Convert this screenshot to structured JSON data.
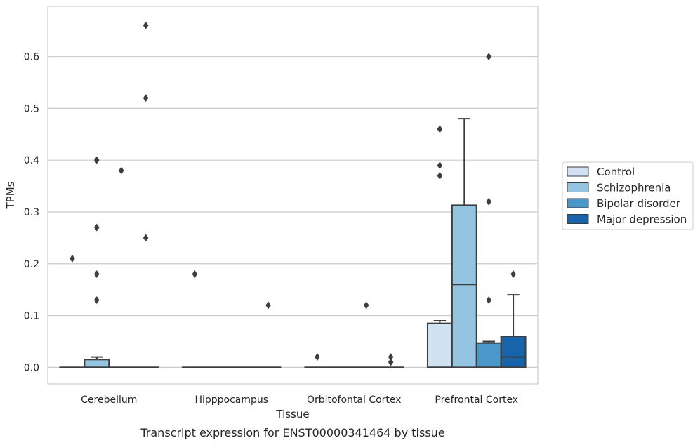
{
  "chart_data": {
    "type": "box",
    "xlabel": "Tissue",
    "ylabel": "TPMs",
    "caption": "Transcript expression for ENST00000341464 by tissue",
    "ylim": [
      -0.032,
      0.697
    ],
    "yticks": [
      0.0,
      0.1,
      0.2,
      0.3,
      0.4,
      0.5,
      0.6
    ],
    "ytick_labels": [
      "0.0",
      "0.1",
      "0.2",
      "0.3",
      "0.4",
      "0.5",
      "0.6"
    ],
    "grid": "horizontal",
    "legend_position": "right",
    "categories": [
      "Cerebellum",
      "Hipppocampus",
      "Orbitofontal Cortex",
      "Prefrontal Cortex"
    ],
    "series": [
      {
        "name": "Control",
        "color": "#d0e1f2",
        "boxes": [
          {
            "q1": 0.0,
            "median": 0.0,
            "q3": 0.0,
            "whisker_low": 0.0,
            "whisker_high": 0.0,
            "outliers": [
              0.21
            ]
          },
          {
            "q1": 0.0,
            "median": 0.0,
            "q3": 0.0,
            "whisker_low": 0.0,
            "whisker_high": 0.0,
            "outliers": [
              0.18
            ]
          },
          {
            "q1": 0.0,
            "median": 0.0,
            "q3": 0.0,
            "whisker_low": 0.0,
            "whisker_high": 0.0,
            "outliers": [
              0.02
            ]
          },
          {
            "q1": 0.0,
            "median": 0.0,
            "q3": 0.085,
            "whisker_low": 0.0,
            "whisker_high": 0.09,
            "outliers": [
              0.46,
              0.39,
              0.37
            ]
          }
        ]
      },
      {
        "name": "Schizophrenia",
        "color": "#94c4df",
        "boxes": [
          {
            "q1": 0.0,
            "median": 0.0,
            "q3": 0.015,
            "whisker_low": 0.0,
            "whisker_high": 0.02,
            "outliers": [
              0.4,
              0.27,
              0.18,
              0.13
            ]
          },
          {
            "q1": 0.0,
            "median": 0.0,
            "q3": 0.0,
            "whisker_low": 0.0,
            "whisker_high": 0.0,
            "outliers": []
          },
          {
            "q1": 0.0,
            "median": 0.0,
            "q3": 0.0,
            "whisker_low": 0.0,
            "whisker_high": 0.0,
            "outliers": []
          },
          {
            "q1": 0.0,
            "median": 0.16,
            "q3": 0.313,
            "whisker_low": 0.0,
            "whisker_high": 0.48,
            "outliers": []
          }
        ]
      },
      {
        "name": "Bipolar disorder",
        "color": "#4a98c9",
        "boxes": [
          {
            "q1": 0.0,
            "median": 0.0,
            "q3": 0.0,
            "whisker_low": 0.0,
            "whisker_high": 0.0,
            "outliers": [
              0.38
            ]
          },
          {
            "q1": 0.0,
            "median": 0.0,
            "q3": 0.0,
            "whisker_low": 0.0,
            "whisker_high": 0.0,
            "outliers": []
          },
          {
            "q1": 0.0,
            "median": 0.0,
            "q3": 0.0,
            "whisker_low": 0.0,
            "whisker_high": 0.0,
            "outliers": [
              0.12
            ]
          },
          {
            "q1": 0.0,
            "median": 0.0,
            "q3": 0.047,
            "whisker_low": 0.0,
            "whisker_high": 0.05,
            "outliers": [
              0.6,
              0.32,
              0.13
            ]
          }
        ]
      },
      {
        "name": "Major depression",
        "color": "#1764ab",
        "boxes": [
          {
            "q1": 0.0,
            "median": 0.0,
            "q3": 0.0,
            "whisker_low": 0.0,
            "whisker_high": 0.0,
            "outliers": [
              0.66,
              0.52,
              0.25
            ]
          },
          {
            "q1": 0.0,
            "median": 0.0,
            "q3": 0.0,
            "whisker_low": 0.0,
            "whisker_high": 0.0,
            "outliers": [
              0.12
            ]
          },
          {
            "q1": 0.0,
            "median": 0.0,
            "q3": 0.0,
            "whisker_low": 0.0,
            "whisker_high": 0.0,
            "outliers": [
              0.02,
              0.01
            ]
          },
          {
            "q1": 0.0,
            "median": 0.02,
            "q3": 0.06,
            "whisker_low": 0.0,
            "whisker_high": 0.14,
            "outliers": [
              0.18
            ]
          }
        ]
      }
    ]
  }
}
